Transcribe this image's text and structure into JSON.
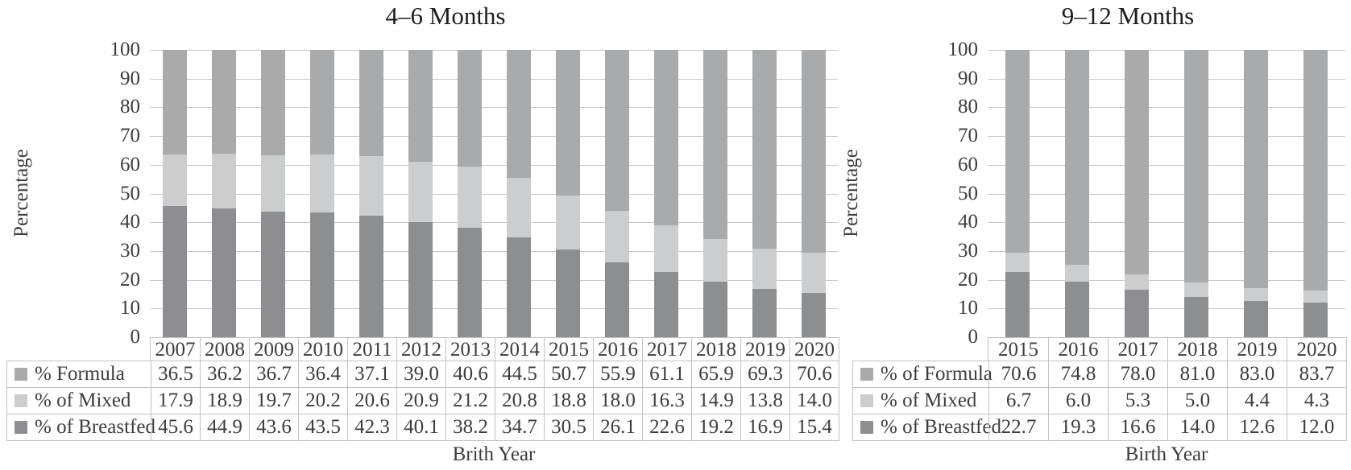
{
  "chart_data": [
    {
      "type": "bar",
      "stacked": true,
      "title": "4–6 Months",
      "x_axis_title": "Brith Year",
      "y_axis_title": "Percentage",
      "ylim": [
        0,
        100
      ],
      "ytick_step": 10,
      "grid": true,
      "legend_position": "table-rows-left",
      "categories": [
        "2007",
        "2008",
        "2009",
        "2010",
        "2011",
        "2012",
        "2013",
        "2014",
        "2015",
        "2016",
        "2017",
        "2018",
        "2019",
        "2020"
      ],
      "series": [
        {
          "name": "% Formula",
          "color": "#a8aaac",
          "values": [
            36.5,
            36.2,
            36.7,
            36.4,
            37.1,
            39.0,
            40.6,
            44.5,
            50.7,
            55.9,
            61.1,
            65.9,
            69.3,
            70.6
          ]
        },
        {
          "name": "% of Mixed",
          "color": "#cccdce",
          "values": [
            17.9,
            18.9,
            19.7,
            20.2,
            20.6,
            20.9,
            21.2,
            20.8,
            18.8,
            18.0,
            16.3,
            14.9,
            13.8,
            14.0
          ]
        },
        {
          "name": "% of Breastfed",
          "color": "#8c8e91",
          "values": [
            45.6,
            44.9,
            43.6,
            43.5,
            42.3,
            40.1,
            38.2,
            34.7,
            30.5,
            26.1,
            22.6,
            19.2,
            16.9,
            15.4
          ]
        }
      ],
      "stack_order": "first series is top segment"
    },
    {
      "type": "bar",
      "stacked": true,
      "title": "9–12 Months",
      "x_axis_title": "Birth Year",
      "y_axis_title": "Percentage",
      "ylim": [
        0,
        100
      ],
      "ytick_step": 10,
      "grid": true,
      "legend_position": "table-rows-left",
      "categories": [
        "2015",
        "2016",
        "2017",
        "2018",
        "2019",
        "2020"
      ],
      "series": [
        {
          "name": "% of Formula",
          "color": "#a8aaac",
          "values": [
            70.6,
            74.8,
            78.0,
            81.0,
            83.0,
            83.7
          ]
        },
        {
          "name": "% of Mixed",
          "color": "#cccdce",
          "values": [
            6.7,
            6.0,
            5.3,
            5.0,
            4.4,
            4.3
          ]
        },
        {
          "name": "% of Breastfed",
          "color": "#8c8e91",
          "values": [
            22.7,
            19.3,
            16.6,
            14.0,
            12.6,
            12.0
          ]
        }
      ],
      "stack_order": "first series is top segment"
    }
  ],
  "palette": {
    "gridline": "#c9c9c9",
    "table_border": "#c2c2c2",
    "text": "#3d3d3d",
    "title_text": "#1e1e1e",
    "background": "#ffffff"
  }
}
